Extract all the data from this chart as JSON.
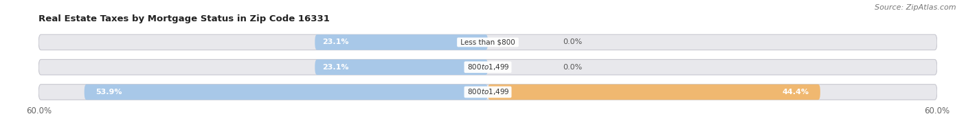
{
  "title": "Real Estate Taxes by Mortgage Status in Zip Code 16331",
  "source": "Source: ZipAtlas.com",
  "rows": [
    {
      "label": "Less than $800",
      "without_mortgage": 23.1,
      "with_mortgage": 0.0
    },
    {
      "label": "$800 to $1,499",
      "without_mortgage": 23.1,
      "with_mortgage": 0.0
    },
    {
      "label": "$800 to $1,499",
      "without_mortgage": 53.9,
      "with_mortgage": 44.4
    }
  ],
  "xlim": 60.0,
  "color_without": "#a8c8e8",
  "color_with": "#f0b870",
  "bar_bg_color": "#dcdcdc",
  "bar_track_color": "#e8e8ec",
  "title_fontsize": 9.5,
  "label_fontsize": 8.0,
  "tick_fontsize": 8.5,
  "legend_fontsize": 8.5,
  "source_fontsize": 8.0
}
